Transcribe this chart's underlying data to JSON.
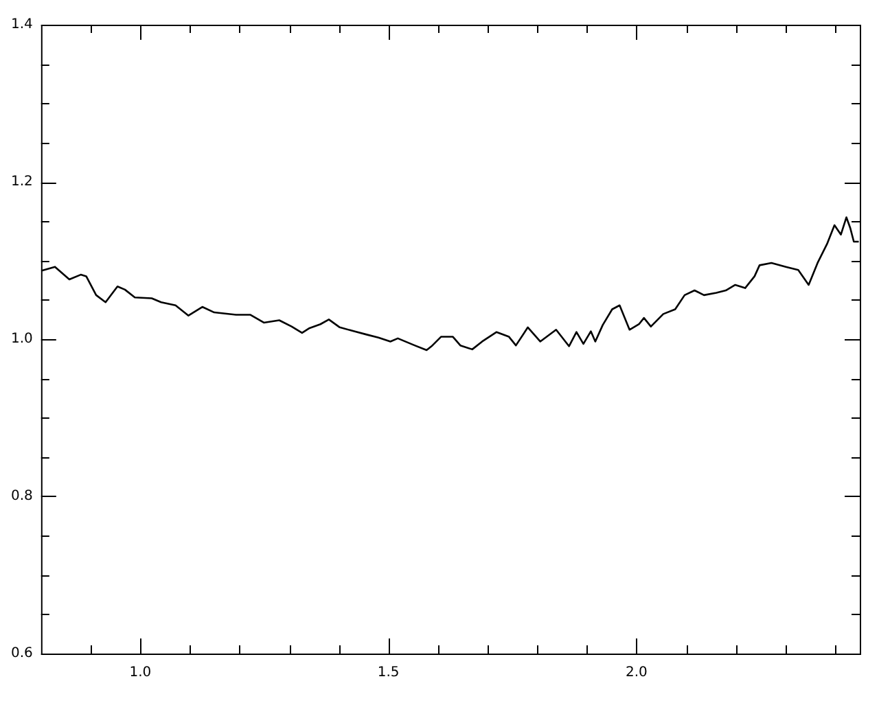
{
  "chart_data": {
    "type": "line",
    "marker": "none",
    "grid": false,
    "legend": false,
    "xlim": [
      0.8,
      2.45
    ],
    "xticks": [
      {
        "value": 0.9,
        "label": null
      },
      {
        "value": 1,
        "label": "1.0"
      },
      {
        "value": 1.1,
        "label": null
      },
      {
        "value": 1.2,
        "label": null
      },
      {
        "value": 1.3,
        "label": null
      },
      {
        "value": 1.4,
        "label": null
      },
      {
        "value": 1.5,
        "label": "1.5"
      },
      {
        "value": 1.6,
        "label": null
      },
      {
        "value": 1.7,
        "label": null
      },
      {
        "value": 1.8,
        "label": null
      },
      {
        "value": 1.9,
        "label": null
      },
      {
        "value": 2,
        "label": "2.0"
      },
      {
        "value": 2.1,
        "label": null
      },
      {
        "value": 2.2,
        "label": null
      },
      {
        "value": 2.3,
        "label": null
      },
      {
        "value": 2.4,
        "label": null
      }
    ],
    "ylim": [
      0.6,
      1.4
    ],
    "yticks": [
      {
        "value": 0.6,
        "label": "0.6"
      },
      {
        "value": 0.65,
        "label": null
      },
      {
        "value": 0.7,
        "label": null
      },
      {
        "value": 0.75,
        "label": null
      },
      {
        "value": 0.8,
        "label": "0.8"
      },
      {
        "value": 0.85,
        "label": null
      },
      {
        "value": 0.9,
        "label": null
      },
      {
        "value": 0.95,
        "label": null
      },
      {
        "value": 1,
        "label": "1.0"
      },
      {
        "value": 1.05,
        "label": null
      },
      {
        "value": 1.1,
        "label": null
      },
      {
        "value": 1.15,
        "label": null
      },
      {
        "value": 1.2,
        "label": "1.2"
      },
      {
        "value": 1.25,
        "label": null
      },
      {
        "value": 1.3,
        "label": null
      },
      {
        "value": 1.35,
        "label": null
      },
      {
        "value": 1.4,
        "label": "1.4"
      }
    ],
    "series": [
      {
        "color": "#000000",
        "x": [
          0.8,
          0.828,
          0.857,
          0.88,
          0.891,
          0.911,
          0.93,
          0.954,
          0.969,
          0.989,
          1.023,
          1.042,
          1.071,
          1.097,
          1.125,
          1.149,
          1.193,
          1.222,
          1.249,
          1.28,
          1.305,
          1.326,
          1.341,
          1.363,
          1.38,
          1.402,
          1.431,
          1.455,
          1.48,
          1.504,
          1.519,
          1.553,
          1.577,
          1.587,
          1.606,
          1.63,
          1.645,
          1.669,
          1.689,
          1.718,
          1.743,
          1.757,
          1.781,
          1.806,
          1.838,
          1.864,
          1.879,
          1.893,
          1.908,
          1.917,
          1.932,
          1.951,
          1.966,
          1.986,
          2.005,
          2.015,
          2.029,
          2.054,
          2.078,
          2.097,
          2.117,
          2.136,
          2.161,
          2.18,
          2.199,
          2.219,
          2.238,
          2.248,
          2.272,
          2.301,
          2.326,
          2.347,
          2.365,
          2.384,
          2.399,
          2.412,
          2.423,
          2.431,
          2.438,
          2.448
        ],
        "values": [
          1.087,
          1.092,
          1.076,
          1.082,
          1.08,
          1.056,
          1.047,
          1.067,
          1.063,
          1.053,
          1.052,
          1.047,
          1.043,
          1.03,
          1.041,
          1.034,
          1.031,
          1.031,
          1.021,
          1.024,
          1.016,
          1.008,
          1.014,
          1.019,
          1.025,
          1.015,
          1.01,
          1.006,
          1.002,
          0.997,
          1.001,
          0.992,
          0.986,
          0.991,
          1.003,
          1.003,
          0.992,
          0.987,
          0.997,
          1.009,
          1.003,
          0.992,
          1.015,
          0.997,
          1.012,
          0.991,
          1.009,
          0.994,
          1.01,
          0.997,
          1.018,
          1.038,
          1.043,
          1.012,
          1.019,
          1.027,
          1.016,
          1.032,
          1.038,
          1.056,
          1.062,
          1.056,
          1.059,
          1.062,
          1.069,
          1.065,
          1.08,
          1.094,
          1.097,
          1.092,
          1.088,
          1.069,
          1.097,
          1.121,
          1.145,
          1.133,
          1.155,
          1.141,
          1.124,
          1.124
        ]
      }
    ]
  }
}
